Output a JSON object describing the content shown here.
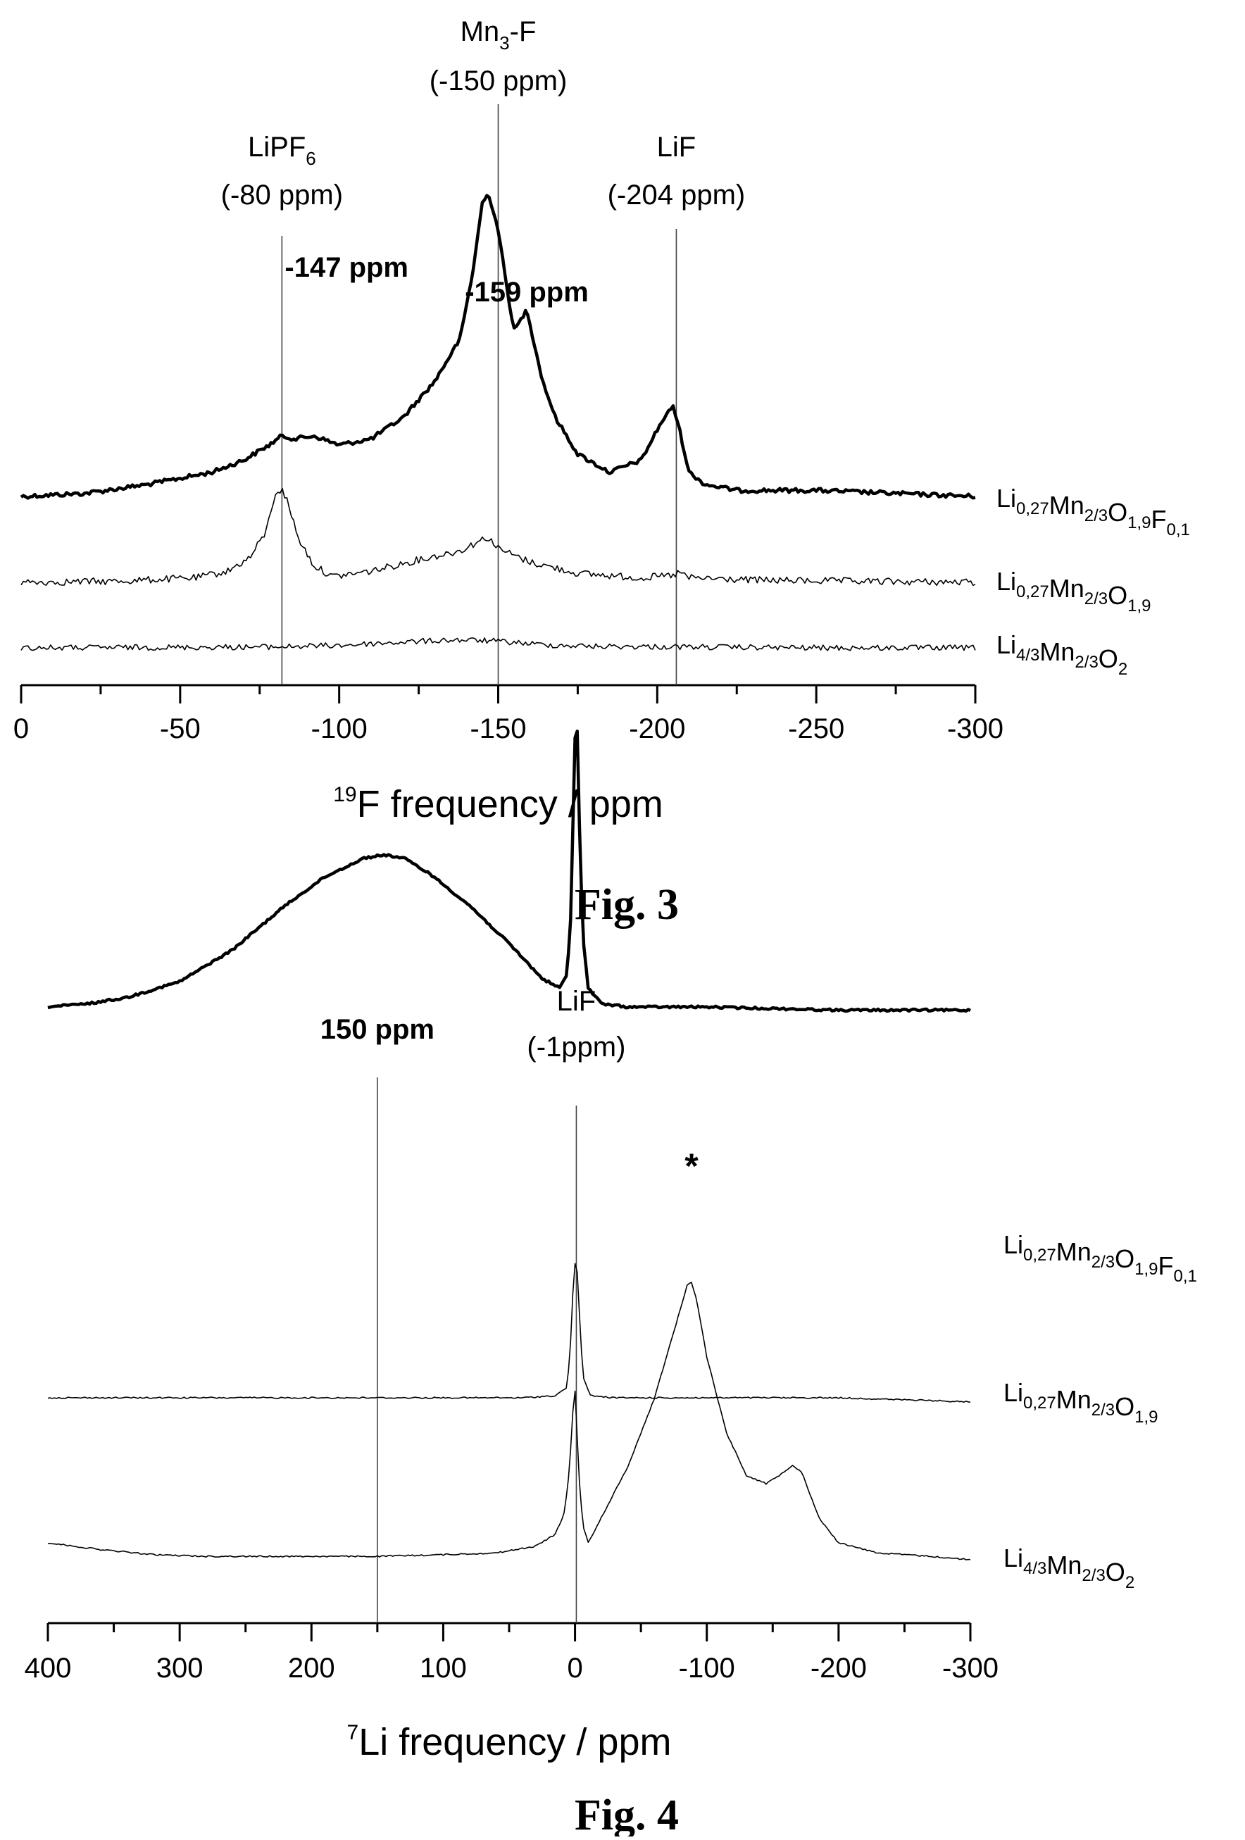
{
  "chart_data": [
    {
      "type": "line",
      "caption": "Fig. 3",
      "xlabel_sup": "19",
      "xlabel_main": "F frequency / ppm",
      "xlim": [
        0,
        -300
      ],
      "x_reversed": true,
      "x_ticks": [
        0,
        -50,
        -100,
        -150,
        -200,
        -250,
        -300
      ],
      "reference_lines": [
        {
          "x": -82,
          "label": "LiPF",
          "label_sub": "6",
          "ppm_label": "(-80 ppm)"
        },
        {
          "x": -150,
          "label": "Mn",
          "label_sub": "3",
          "label_tail": "-F",
          "ppm_label": "(-150 ppm)"
        },
        {
          "x": -206,
          "label": "LiF",
          "ppm_label": "(-204 ppm)"
        }
      ],
      "peak_labels": [
        {
          "text": "-147 ppm",
          "x": -147
        },
        {
          "text": "-159 ppm",
          "x": -159
        }
      ],
      "series": [
        {
          "name": "Li0,27Mn2/3O1,9F0,1",
          "name_parts": [
            [
              "Li",
              ""
            ],
            [
              "0,27",
              "sub"
            ],
            [
              "Mn",
              ""
            ],
            [
              "2/3",
              "sub"
            ],
            [
              "O",
              ""
            ],
            [
              "1,9",
              "sub"
            ],
            [
              "F",
              ""
            ],
            [
              "0,1",
              "sub"
            ]
          ],
          "style": "thick",
          "x": [
            0,
            -20,
            -40,
            -60,
            -70,
            -78,
            -82,
            -86,
            -92,
            -100,
            -110,
            -120,
            -130,
            -138,
            -142,
            -145,
            -147,
            -150,
            -153,
            -155,
            -157,
            -159,
            -161,
            -164,
            -168,
            -175,
            -185,
            -195,
            -201,
            -205,
            -207,
            -210,
            -215,
            -225,
            -250,
            -275,
            -300
          ],
          "y": [
            0.0,
            0.01,
            0.04,
            0.08,
            0.12,
            0.17,
            0.2,
            0.19,
            0.2,
            0.17,
            0.19,
            0.26,
            0.38,
            0.52,
            0.74,
            0.97,
            1.0,
            0.88,
            0.67,
            0.55,
            0.58,
            0.62,
            0.52,
            0.38,
            0.26,
            0.14,
            0.08,
            0.12,
            0.24,
            0.3,
            0.22,
            0.08,
            0.04,
            0.02,
            0.02,
            0.01,
            0.0
          ]
        },
        {
          "name": "Li0,27Mn2/3O1,9",
          "name_parts": [
            [
              "Li",
              ""
            ],
            [
              "0,27",
              "sub"
            ],
            [
              "Mn",
              ""
            ],
            [
              "2/3",
              "sub"
            ],
            [
              "O",
              ""
            ],
            [
              "1,9",
              "sub"
            ]
          ],
          "style": "thin",
          "x": [
            0,
            -30,
            -55,
            -65,
            -72,
            -77,
            -80,
            -82,
            -84,
            -87,
            -92,
            -98,
            -110,
            -125,
            -138,
            -145,
            -147,
            -150,
            -160,
            -175,
            -195,
            -205,
            -207,
            -210,
            -230,
            -260,
            -300
          ],
          "y": [
            0.0,
            0.01,
            0.04,
            0.1,
            0.22,
            0.45,
            0.8,
            0.82,
            0.7,
            0.4,
            0.15,
            0.05,
            0.1,
            0.2,
            0.28,
            0.38,
            0.4,
            0.3,
            0.18,
            0.08,
            0.04,
            0.06,
            0.09,
            0.04,
            0.02,
            0.01,
            0.0
          ]
        },
        {
          "name": "Li4/3Mn2/3O2",
          "name_parts": [
            [
              "Li",
              ""
            ],
            [
              "4/3",
              "sub"
            ],
            [
              "Mn",
              ""
            ],
            [
              "2/3",
              "sub"
            ],
            [
              "O",
              ""
            ],
            [
              "2",
              "sub"
            ]
          ],
          "style": "thin",
          "x": [
            0,
            -50,
            -80,
            -100,
            -115,
            -125,
            -135,
            -145,
            -155,
            -165,
            -180,
            -205,
            -250,
            -300
          ],
          "y": [
            0.0,
            0.01,
            0.02,
            0.05,
            0.1,
            0.13,
            0.16,
            0.15,
            0.11,
            0.06,
            0.03,
            0.02,
            0.0,
            0.0
          ]
        }
      ]
    },
    {
      "type": "line",
      "caption": "Fig. 4",
      "xlabel_sup": "7",
      "xlabel_main": "Li frequency / ppm",
      "xlim": [
        400,
        -300
      ],
      "x_reversed": true,
      "x_ticks": [
        400,
        300,
        200,
        100,
        0,
        -100,
        -200,
        -300
      ],
      "reference_lines": [
        {
          "x": 150,
          "label": "150 ppm",
          "bold": true
        },
        {
          "x": -1,
          "label": "LiF",
          "ppm_label": "(-1ppm)"
        }
      ],
      "peak_labels": [
        {
          "text": "*",
          "x": -88
        }
      ],
      "series": [
        {
          "name": "Li0,27Mn2/3O1,9F0,1",
          "name_parts": [
            [
              "Li",
              ""
            ],
            [
              "0,27",
              "sub"
            ],
            [
              "Mn",
              ""
            ],
            [
              "2/3",
              "sub"
            ],
            [
              "O",
              ""
            ],
            [
              "1,9",
              "sub"
            ],
            [
              "F",
              ""
            ],
            [
              "0,1",
              "sub"
            ]
          ],
          "style": "thick",
          "x": [
            400,
            370,
            340,
            300,
            260,
            220,
            190,
            160,
            145,
            130,
            110,
            80,
            50,
            25,
            12,
            6,
            3,
            1,
            -1,
            -3,
            -6,
            -10,
            -20,
            -40,
            -100,
            -200,
            -300
          ],
          "y": [
            0.0,
            0.01,
            0.03,
            0.08,
            0.18,
            0.32,
            0.41,
            0.47,
            0.48,
            0.47,
            0.42,
            0.32,
            0.2,
            0.09,
            0.06,
            0.1,
            0.3,
            0.7,
            1.0,
            0.62,
            0.22,
            0.06,
            0.01,
            0.0,
            0.0,
            -0.01,
            -0.01
          ]
        },
        {
          "name": "Li0,27Mn2/3O1,9",
          "name_parts": [
            [
              "Li",
              ""
            ],
            [
              "0,27",
              "sub"
            ],
            [
              "Mn",
              ""
            ],
            [
              "2/3",
              "sub"
            ],
            [
              "O",
              ""
            ],
            [
              "1,9",
              "sub"
            ]
          ],
          "style": "thin",
          "x": [
            400,
            300,
            200,
            100,
            40,
            15,
            6,
            3,
            1,
            -1,
            -3,
            -6,
            -12,
            -30,
            -100,
            -200,
            -300
          ],
          "y": [
            0.0,
            0.0,
            0.0,
            0.0,
            0.0,
            0.01,
            0.05,
            0.3,
            0.62,
            0.7,
            0.45,
            0.1,
            0.01,
            0.0,
            0.0,
            0.0,
            -0.02
          ]
        },
        {
          "name": "Li4/3Mn2/3O2",
          "name_parts": [
            [
              "Li",
              ""
            ],
            [
              "4/3",
              "sub"
            ],
            [
              "Mn",
              ""
            ],
            [
              "2/3",
              "sub"
            ],
            [
              "O",
              ""
            ],
            [
              "2",
              "sub"
            ]
          ],
          "style": "thin",
          "x": [
            400,
            360,
            320,
            280,
            200,
            150,
            100,
            60,
            30,
            15,
            8,
            4,
            2,
            0,
            -3,
            -6,
            -10,
            -20,
            -40,
            -60,
            -75,
            -85,
            -88,
            -92,
            -100,
            -115,
            -130,
            -145,
            -155,
            -165,
            -172,
            -185,
            -200,
            -230,
            -270,
            -300
          ],
          "y": [
            0.1,
            0.06,
            0.03,
            0.02,
            0.02,
            0.02,
            0.03,
            0.04,
            0.08,
            0.15,
            0.28,
            0.55,
            0.85,
            1.0,
            0.5,
            0.2,
            0.1,
            0.25,
            0.55,
            0.95,
            1.35,
            1.62,
            1.65,
            1.55,
            1.2,
            0.75,
            0.5,
            0.45,
            0.5,
            0.56,
            0.52,
            0.25,
            0.1,
            0.04,
            0.02,
            0.0
          ]
        }
      ]
    }
  ]
}
